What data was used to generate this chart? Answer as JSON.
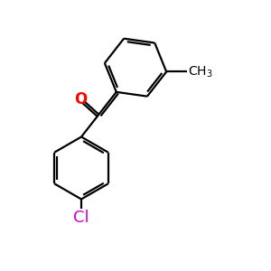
{
  "bg_color": "#ffffff",
  "bond_color": "#000000",
  "oxygen_color": "#ff0000",
  "chlorine_color": "#cc00cc",
  "text_color": "#000000",
  "bond_width": 1.6,
  "font_size": 12,
  "ch3_font_size": 10,
  "cl_font_size": 13
}
